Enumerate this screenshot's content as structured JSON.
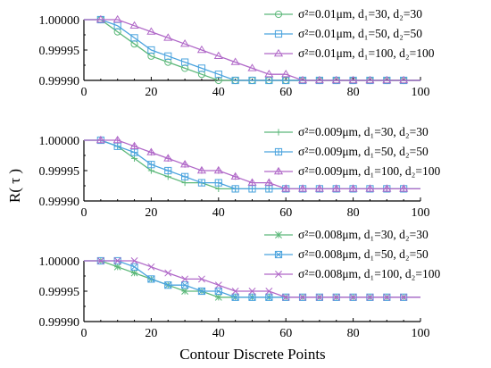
{
  "figure": {
    "ylabel": "R( τ )",
    "xlabel": "Contour Discrete Points"
  },
  "chart_data": [
    {
      "type": "line",
      "xlim": [
        0,
        100
      ],
      "ylim": [
        0.9999,
        1.0
      ],
      "xticks": [
        "0",
        "20",
        "40",
        "60",
        "80",
        "100"
      ],
      "yticks": [
        "0.99990",
        "0.99995",
        "1.00000"
      ],
      "grid": false,
      "legend_position": "top-right",
      "x": [
        5,
        10,
        15,
        20,
        25,
        30,
        35,
        40,
        45,
        50,
        55,
        60,
        65,
        70,
        75,
        80,
        85,
        90,
        95
      ],
      "series": [
        {
          "name": "σ²=0.01μm, d₁=30, d₂=30",
          "marker": "circle",
          "color": "#5cb87a",
          "values": [
            1.0,
            0.99998,
            0.99996,
            0.99994,
            0.99993,
            0.99992,
            0.99991,
            0.9999,
            0.9999,
            0.9999,
            0.9999,
            0.9999,
            0.9999,
            0.9999,
            0.9999,
            0.9999,
            0.9999,
            0.9999,
            0.9999
          ]
        },
        {
          "name": "σ²=0.01μm, d₁=50, d₂=50",
          "marker": "square",
          "color": "#4aa3de",
          "values": [
            1.0,
            0.99999,
            0.99997,
            0.99995,
            0.99994,
            0.99993,
            0.99992,
            0.99991,
            0.9999,
            0.9999,
            0.9999,
            0.9999,
            0.9999,
            0.9999,
            0.9999,
            0.9999,
            0.9999,
            0.9999,
            0.9999
          ]
        },
        {
          "name": "σ²=0.01μm, d₁=100, d₂=100",
          "marker": "triangle",
          "color": "#b068c8",
          "values": [
            1.0,
            1.0,
            0.99999,
            0.99998,
            0.99997,
            0.99996,
            0.99995,
            0.99994,
            0.99993,
            0.99992,
            0.99991,
            0.99991,
            0.9999,
            0.9999,
            0.9999,
            0.9999,
            0.9999,
            0.9999,
            0.9999
          ]
        }
      ]
    },
    {
      "type": "line",
      "xlim": [
        0,
        100
      ],
      "ylim": [
        0.9999,
        1.0
      ],
      "xticks": [
        "0",
        "20",
        "40",
        "60",
        "80",
        "100"
      ],
      "yticks": [
        "0.99990",
        "0.99995",
        "1.00000"
      ],
      "grid": false,
      "legend_position": "top-right",
      "x": [
        5,
        10,
        15,
        20,
        25,
        30,
        35,
        40,
        45,
        50,
        55,
        60,
        65,
        70,
        75,
        80,
        85,
        90,
        95
      ],
      "series": [
        {
          "name": "σ²=0.009μm, d₁=30, d₂=30",
          "marker": "cross",
          "color": "#5cb87a",
          "values": [
            1.0,
            0.99999,
            0.99997,
            0.99995,
            0.99994,
            0.99993,
            0.99993,
            0.99992,
            0.99992,
            0.99992,
            0.99992,
            0.99992,
            0.99992,
            0.99992,
            0.99992,
            0.99992,
            0.99992,
            0.99992,
            0.99992
          ]
        },
        {
          "name": "σ²=0.009μm, d₁=50, d₂=50",
          "marker": "boxplus",
          "color": "#4aa3de",
          "values": [
            1.0,
            0.99999,
            0.99998,
            0.99996,
            0.99995,
            0.99994,
            0.99993,
            0.99993,
            0.99992,
            0.99992,
            0.99992,
            0.99992,
            0.99992,
            0.99992,
            0.99992,
            0.99992,
            0.99992,
            0.99992,
            0.99992
          ]
        },
        {
          "name": "σ²=0.009μm, d₁=100, d₂=100",
          "marker": "triangle-cross",
          "color": "#b068c8",
          "values": [
            1.0,
            1.0,
            0.99999,
            0.99998,
            0.99997,
            0.99996,
            0.99995,
            0.99995,
            0.99994,
            0.99993,
            0.99993,
            0.99992,
            0.99992,
            0.99992,
            0.99992,
            0.99992,
            0.99992,
            0.99992,
            0.99992
          ]
        }
      ]
    },
    {
      "type": "line",
      "xlim": [
        0,
        100
      ],
      "ylim": [
        0.9999,
        1.0
      ],
      "xticks": [
        "0",
        "20",
        "40",
        "60",
        "80",
        "100"
      ],
      "yticks": [
        "0.99990",
        "0.99995",
        "1.00000"
      ],
      "grid": false,
      "legend_position": "top-right",
      "x": [
        5,
        10,
        15,
        20,
        25,
        30,
        35,
        40,
        45,
        50,
        55,
        60,
        65,
        70,
        75,
        80,
        85,
        90,
        95
      ],
      "series": [
        {
          "name": "σ²=0.008μm, d₁=30, d₂=30",
          "marker": "x-plus",
          "color": "#5cb87a",
          "values": [
            1.0,
            0.99999,
            0.99998,
            0.99997,
            0.99996,
            0.99995,
            0.99995,
            0.99994,
            0.99994,
            0.99994,
            0.99994,
            0.99994,
            0.99994,
            0.99994,
            0.99994,
            0.99994,
            0.99994,
            0.99994,
            0.99994
          ]
        },
        {
          "name": "σ²=0.008μm, d₁=50, d₂=50",
          "marker": "box-x",
          "color": "#4aa3de",
          "values": [
            1.0,
            1.0,
            0.99999,
            0.99997,
            0.99996,
            0.99996,
            0.99995,
            0.99995,
            0.99994,
            0.99994,
            0.99994,
            0.99994,
            0.99994,
            0.99994,
            0.99994,
            0.99994,
            0.99994,
            0.99994,
            0.99994
          ]
        },
        {
          "name": "σ²=0.008μm, d₁=100, d₂=100",
          "marker": "x",
          "color": "#b068c8",
          "values": [
            1.0,
            1.0,
            1.0,
            0.99999,
            0.99998,
            0.99997,
            0.99997,
            0.99996,
            0.99995,
            0.99995,
            0.99995,
            0.99994,
            0.99994,
            0.99994,
            0.99994,
            0.99994,
            0.99994,
            0.99994,
            0.99994
          ]
        }
      ]
    }
  ]
}
